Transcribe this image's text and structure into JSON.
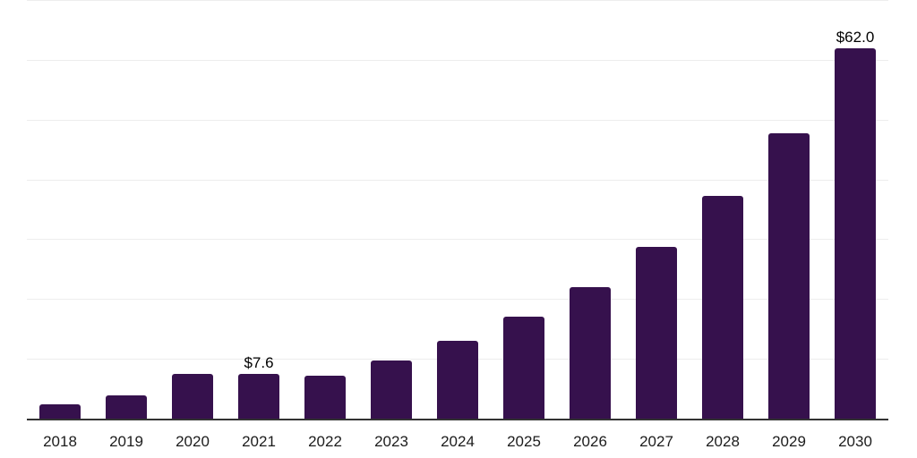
{
  "chart_data": {
    "type": "bar",
    "title": "",
    "xlabel": "",
    "ylabel": "",
    "categories": [
      "2018",
      "2019",
      "2020",
      "2021",
      "2022",
      "2023",
      "2024",
      "2025",
      "2026",
      "2027",
      "2028",
      "2029",
      "2030"
    ],
    "values": [
      2.5,
      4.0,
      7.7,
      7.6,
      7.4,
      9.9,
      13.2,
      17.2,
      22.1,
      28.9,
      37.4,
      47.9,
      62.0
    ],
    "data_labels": {
      "2021": "$7.6",
      "2030": "$62.0"
    },
    "ylim": [
      0,
      70
    ],
    "gridline_step": 10,
    "grid": "horizontal",
    "legend": "none",
    "colors": {
      "bar": "#36114d",
      "axis": "#333333",
      "gridline": "#ededed",
      "tick_label": "#1c1c1c",
      "value_label": "#000000",
      "background": "#ffffff"
    }
  }
}
